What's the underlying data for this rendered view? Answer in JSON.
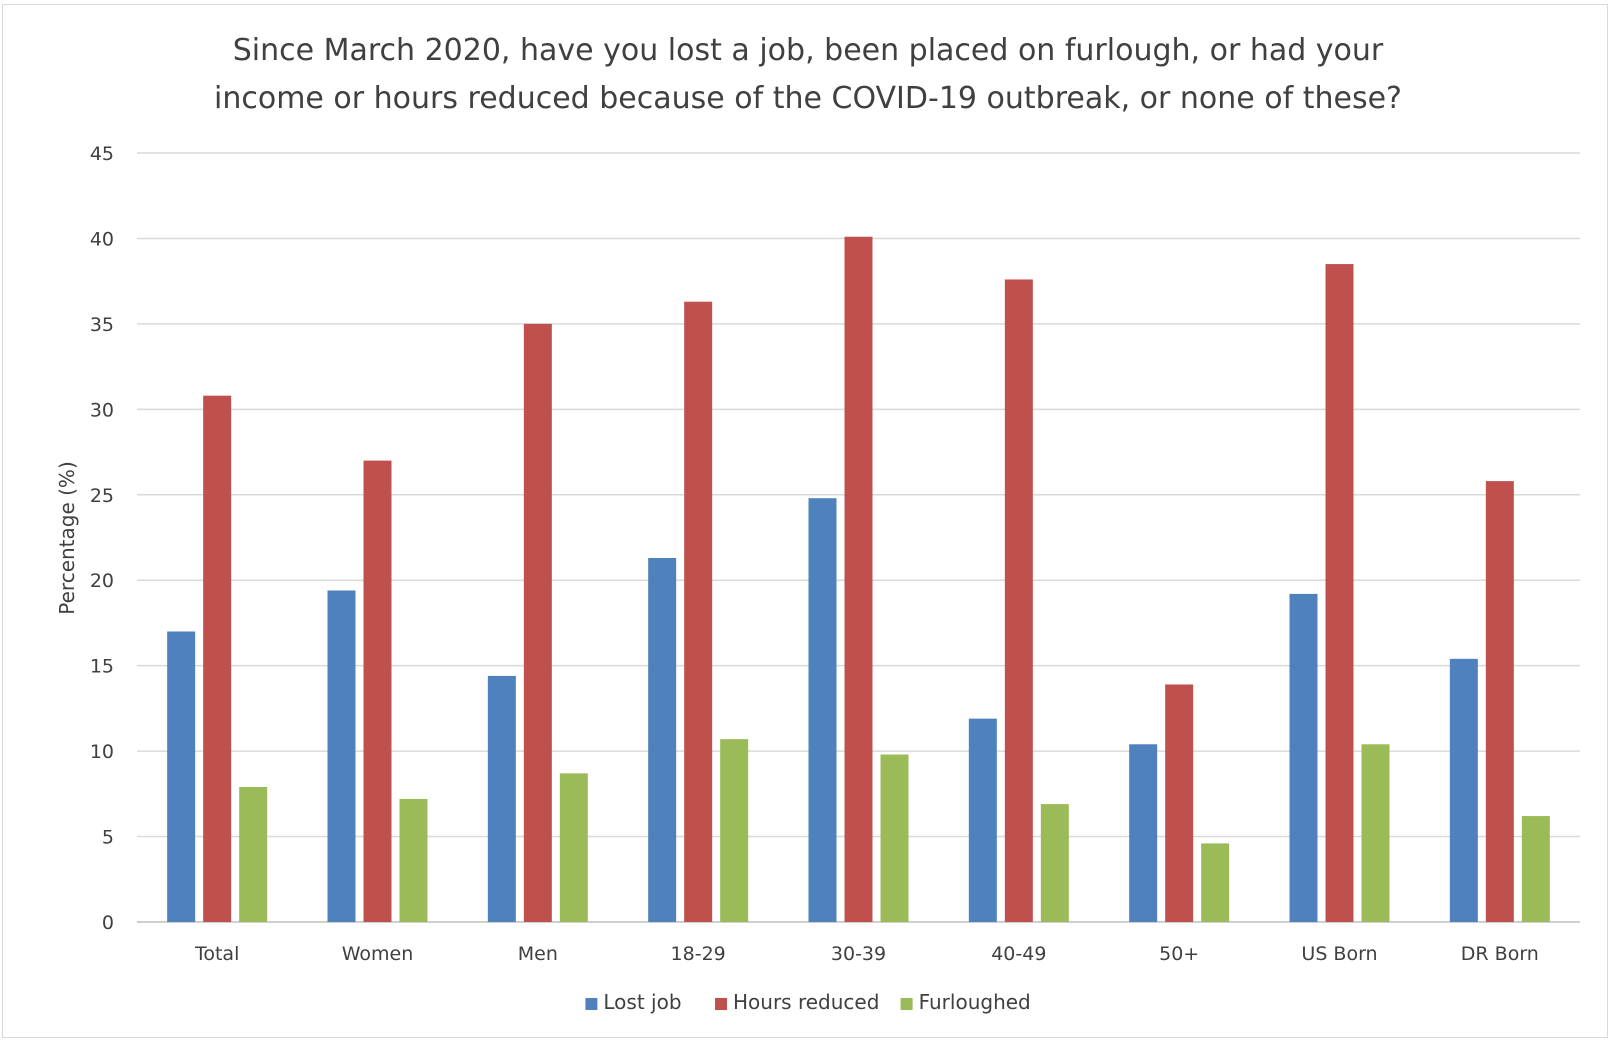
{
  "chart_data": {
    "type": "bar",
    "title_lines": [
      "Since March 2020, have you lost a job, been placed on furlough, or had your",
      "income or hours reduced because of the COVID-19 outbreak, or none of these?"
    ],
    "xlabel": "",
    "ylabel": "Percentage (%)",
    "ylim": [
      0,
      45
    ],
    "yticks": [
      0,
      5,
      10,
      15,
      20,
      25,
      30,
      35,
      40,
      45
    ],
    "grid": true,
    "legend_position": "bottom",
    "categories": [
      "Total",
      "Women",
      "Men",
      "18-29",
      "30-39",
      "40-49",
      "50+",
      "US Born",
      "DR Born"
    ],
    "series": [
      {
        "name": "Lost job",
        "color": "#4f81bd",
        "values": [
          17.0,
          19.4,
          14.4,
          21.3,
          24.8,
          11.9,
          10.4,
          19.2,
          15.4
        ]
      },
      {
        "name": "Hours reduced",
        "color": "#c0504d",
        "values": [
          30.8,
          27.0,
          35.0,
          36.3,
          40.1,
          37.6,
          13.9,
          38.5,
          25.8
        ]
      },
      {
        "name": "Furloughed",
        "color": "#9bbb59",
        "values": [
          7.9,
          7.2,
          8.7,
          10.7,
          9.8,
          6.9,
          4.6,
          10.4,
          6.2
        ]
      }
    ],
    "gridline_color": "#d9d9d9",
    "axis_line_color": "#bfbfbf"
  }
}
